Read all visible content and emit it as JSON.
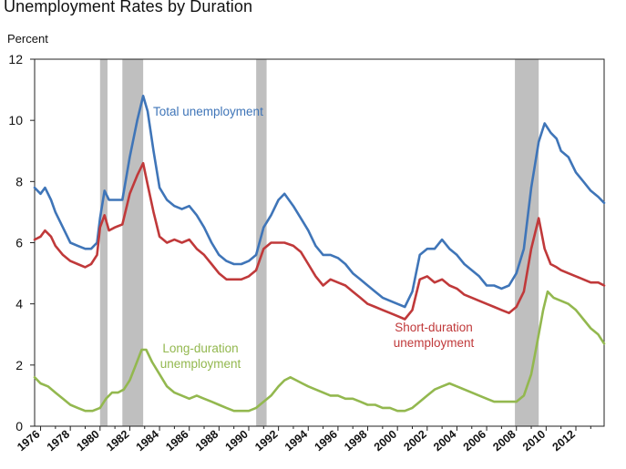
{
  "header": {
    "title": "Unemployment Rates by Duration",
    "y_unit": "Percent"
  },
  "chart_data": {
    "type": "line",
    "title": "Unemployment Rates by Duration",
    "ylabel": "Percent",
    "xlabel": "",
    "xlim": [
      1975.6,
      2013.9
    ],
    "ylim": [
      0,
      12
    ],
    "y_ticks": [
      0,
      2,
      4,
      6,
      8,
      10,
      12
    ],
    "x_ticks": [
      "1976",
      "1978",
      "1980",
      "1982",
      "1984",
      "1986",
      "1988",
      "1990",
      "1992",
      "1994",
      "1996",
      "1998",
      "2000",
      "2002",
      "2004",
      "2006",
      "2008",
      "2010",
      "2012"
    ],
    "recessions": [
      [
        1980.0,
        1980.5
      ],
      [
        1981.5,
        1982.9
      ],
      [
        1990.5,
        1991.2
      ],
      [
        2007.9,
        2009.5
      ]
    ],
    "annotations": [
      {
        "series": "total",
        "lines": [
          "Total unemployment"
        ]
      },
      {
        "series": "short",
        "lines": [
          "Short-duration",
          "unemployment"
        ]
      },
      {
        "series": "long",
        "lines": [
          "Long-duration",
          "unemployment"
        ]
      }
    ],
    "colors": {
      "total": "#3f75b8",
      "short": "#c0393a",
      "long": "#93b84f",
      "recession": "#bfbfbf"
    },
    "series": [
      {
        "key": "total",
        "x": [
          1975.6,
          1976.0,
          1976.3,
          1976.7,
          1977.0,
          1977.5,
          1978.0,
          1978.5,
          1979.0,
          1979.4,
          1979.8,
          1980.0,
          1980.3,
          1980.6,
          1981.0,
          1981.5,
          1982.0,
          1982.5,
          1982.9,
          1983.2,
          1983.6,
          1984.0,
          1984.5,
          1985.0,
          1985.5,
          1986.0,
          1986.5,
          1987.0,
          1987.5,
          1988.0,
          1988.5,
          1989.0,
          1989.5,
          1990.0,
          1990.5,
          1991.0,
          1991.5,
          1992.0,
          1992.4,
          1993.0,
          1993.5,
          1994.0,
          1994.5,
          1995.0,
          1995.5,
          1996.0,
          1996.5,
          1997.0,
          1997.5,
          1998.0,
          1998.5,
          1999.0,
          1999.5,
          2000.0,
          2000.5,
          2001.0,
          2001.5,
          2002.0,
          2002.5,
          2003.0,
          2003.5,
          2004.0,
          2004.5,
          2005.0,
          2005.5,
          2006.0,
          2006.5,
          2007.0,
          2007.5,
          2008.0,
          2008.5,
          2009.0,
          2009.5,
          2009.9,
          2010.3,
          2010.7,
          2011.0,
          2011.5,
          2012.0,
          2012.5,
          2013.0,
          2013.5,
          2013.9
        ],
        "y": [
          7.8,
          7.6,
          7.8,
          7.4,
          7.0,
          6.5,
          6.0,
          5.9,
          5.8,
          5.8,
          6.0,
          6.8,
          7.7,
          7.4,
          7.4,
          7.4,
          8.8,
          10.0,
          10.8,
          10.3,
          9.0,
          7.8,
          7.4,
          7.2,
          7.1,
          7.2,
          6.9,
          6.5,
          6.0,
          5.6,
          5.4,
          5.3,
          5.3,
          5.4,
          5.6,
          6.5,
          6.9,
          7.4,
          7.6,
          7.2,
          6.8,
          6.4,
          5.9,
          5.6,
          5.6,
          5.5,
          5.3,
          5.0,
          4.8,
          4.6,
          4.4,
          4.2,
          4.1,
          4.0,
          3.9,
          4.4,
          5.6,
          5.8,
          5.8,
          6.1,
          5.8,
          5.6,
          5.3,
          5.1,
          4.9,
          4.6,
          4.6,
          4.5,
          4.6,
          5.0,
          5.8,
          7.8,
          9.3,
          9.9,
          9.6,
          9.4,
          9.0,
          8.8,
          8.3,
          8.0,
          7.7,
          7.5,
          7.3
        ]
      },
      {
        "key": "short",
        "x": [
          1975.6,
          1976.0,
          1976.3,
          1976.7,
          1977.0,
          1977.5,
          1978.0,
          1978.5,
          1979.0,
          1979.4,
          1979.8,
          1980.0,
          1980.3,
          1980.6,
          1981.0,
          1981.5,
          1982.0,
          1982.5,
          1982.9,
          1983.2,
          1983.6,
          1984.0,
          1984.5,
          1985.0,
          1985.5,
          1986.0,
          1986.5,
          1987.0,
          1987.5,
          1988.0,
          1988.5,
          1989.0,
          1989.5,
          1990.0,
          1990.5,
          1991.0,
          1991.5,
          1992.0,
          1992.4,
          1993.0,
          1993.5,
          1994.0,
          1994.5,
          1995.0,
          1995.5,
          1996.0,
          1996.5,
          1997.0,
          1997.5,
          1998.0,
          1998.5,
          1999.0,
          1999.5,
          2000.0,
          2000.5,
          2001.0,
          2001.5,
          2002.0,
          2002.5,
          2003.0,
          2003.5,
          2004.0,
          2004.5,
          2005.0,
          2005.5,
          2006.0,
          2006.5,
          2007.0,
          2007.5,
          2008.0,
          2008.5,
          2009.0,
          2009.5,
          2009.9,
          2010.3,
          2010.7,
          2011.0,
          2011.5,
          2012.0,
          2012.5,
          2013.0,
          2013.5,
          2013.9
        ],
        "y": [
          6.1,
          6.2,
          6.4,
          6.2,
          5.9,
          5.6,
          5.4,
          5.3,
          5.2,
          5.3,
          5.6,
          6.5,
          6.9,
          6.4,
          6.5,
          6.6,
          7.6,
          8.2,
          8.6,
          7.9,
          7.0,
          6.2,
          6.0,
          6.1,
          6.0,
          6.1,
          5.8,
          5.6,
          5.3,
          5.0,
          4.8,
          4.8,
          4.8,
          4.9,
          5.1,
          5.8,
          6.0,
          6.0,
          6.0,
          5.9,
          5.7,
          5.3,
          4.9,
          4.6,
          4.8,
          4.7,
          4.6,
          4.4,
          4.2,
          4.0,
          3.9,
          3.8,
          3.7,
          3.6,
          3.5,
          3.8,
          4.8,
          4.9,
          4.7,
          4.8,
          4.6,
          4.5,
          4.3,
          4.2,
          4.1,
          4.0,
          3.9,
          3.8,
          3.7,
          3.9,
          4.4,
          5.8,
          6.8,
          5.8,
          5.3,
          5.2,
          5.1,
          5.0,
          4.9,
          4.8,
          4.7,
          4.7,
          4.6
        ]
      },
      {
        "key": "long",
        "x": [
          1975.6,
          1976.0,
          1976.5,
          1977.0,
          1977.5,
          1978.0,
          1978.5,
          1979.0,
          1979.5,
          1980.0,
          1980.4,
          1980.8,
          1981.2,
          1981.6,
          1982.0,
          1982.4,
          1982.8,
          1983.1,
          1983.5,
          1984.0,
          1984.5,
          1985.0,
          1985.5,
          1986.0,
          1986.5,
          1987.0,
          1987.5,
          1988.0,
          1988.5,
          1989.0,
          1989.5,
          1990.0,
          1990.5,
          1991.0,
          1991.5,
          1992.0,
          1992.4,
          1992.8,
          1993.2,
          1993.6,
          1994.0,
          1994.5,
          1995.0,
          1995.5,
          1996.0,
          1996.5,
          1997.0,
          1997.5,
          1998.0,
          1998.5,
          1999.0,
          1999.5,
          2000.0,
          2000.5,
          2001.0,
          2001.5,
          2002.0,
          2002.5,
          2003.0,
          2003.5,
          2004.0,
          2004.5,
          2005.0,
          2005.5,
          2006.0,
          2006.5,
          2007.0,
          2007.5,
          2008.0,
          2008.5,
          2009.0,
          2009.5,
          2009.8,
          2010.1,
          2010.5,
          2011.0,
          2011.5,
          2012.0,
          2012.5,
          2013.0,
          2013.5,
          2013.9
        ],
        "y": [
          1.6,
          1.4,
          1.3,
          1.1,
          0.9,
          0.7,
          0.6,
          0.5,
          0.5,
          0.6,
          0.9,
          1.1,
          1.1,
          1.2,
          1.5,
          2.0,
          2.5,
          2.5,
          2.1,
          1.7,
          1.3,
          1.1,
          1.0,
          0.9,
          1.0,
          0.9,
          0.8,
          0.7,
          0.6,
          0.5,
          0.5,
          0.5,
          0.6,
          0.8,
          1.0,
          1.3,
          1.5,
          1.6,
          1.5,
          1.4,
          1.3,
          1.2,
          1.1,
          1.0,
          1.0,
          0.9,
          0.9,
          0.8,
          0.7,
          0.7,
          0.6,
          0.6,
          0.5,
          0.5,
          0.6,
          0.8,
          1.0,
          1.2,
          1.3,
          1.4,
          1.3,
          1.2,
          1.1,
          1.0,
          0.9,
          0.8,
          0.8,
          0.8,
          0.8,
          1.0,
          1.7,
          3.0,
          3.8,
          4.4,
          4.2,
          4.1,
          4.0,
          3.8,
          3.5,
          3.2,
          3.0,
          2.7
        ]
      }
    ]
  }
}
